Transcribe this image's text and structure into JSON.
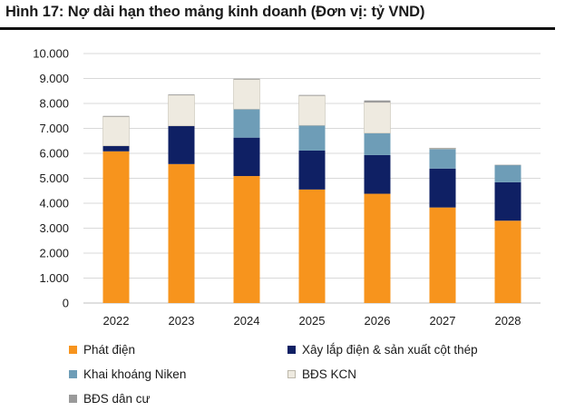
{
  "title": "Hình 17: Nợ dài hạn theo mảng kinh doanh (Đơn vị: tỷ VND)",
  "chart_data": {
    "type": "bar",
    "stacked": true,
    "title": "Hình 17: Nợ dài hạn theo mảng kinh doanh (Đơn vị: tỷ VND)",
    "xlabel": "",
    "ylabel": "",
    "ylim": [
      0,
      10000
    ],
    "yticks": [
      0,
      1000,
      2000,
      3000,
      4000,
      5000,
      6000,
      7000,
      8000,
      9000,
      10000
    ],
    "ytick_labels": [
      "0",
      "1.000",
      "2.000",
      "3.000",
      "4.000",
      "5.000",
      "6.000",
      "7.000",
      "8.000",
      "9.000",
      "10.000"
    ],
    "grid": true,
    "legend_position": "bottom",
    "categories": [
      "2022",
      "2023",
      "2024",
      "2025",
      "2026",
      "2027",
      "2028"
    ],
    "series": [
      {
        "name": "Phát điện",
        "color": "#F7941D",
        "values": [
          6080,
          5570,
          5090,
          4550,
          4380,
          3830,
          3300
        ]
      },
      {
        "name": "Xây lắp điện & sản xuất cột thép",
        "color": "#0F2064",
        "values": [
          220,
          1530,
          1540,
          1560,
          1550,
          1560,
          1540
        ]
      },
      {
        "name": "Khai khoáng Niken",
        "color": "#6E9DB7",
        "values": [
          0,
          0,
          1140,
          1010,
          880,
          790,
          690
        ]
      },
      {
        "name": "BĐS KCN",
        "color": "#EEEAE0",
        "values": [
          1170,
          1230,
          1190,
          1190,
          1230,
          20,
          0
        ]
      },
      {
        "name": "BĐS dân cư",
        "color": "#9A9A9A",
        "values": [
          30,
          30,
          30,
          30,
          80,
          20,
          10
        ]
      }
    ]
  }
}
